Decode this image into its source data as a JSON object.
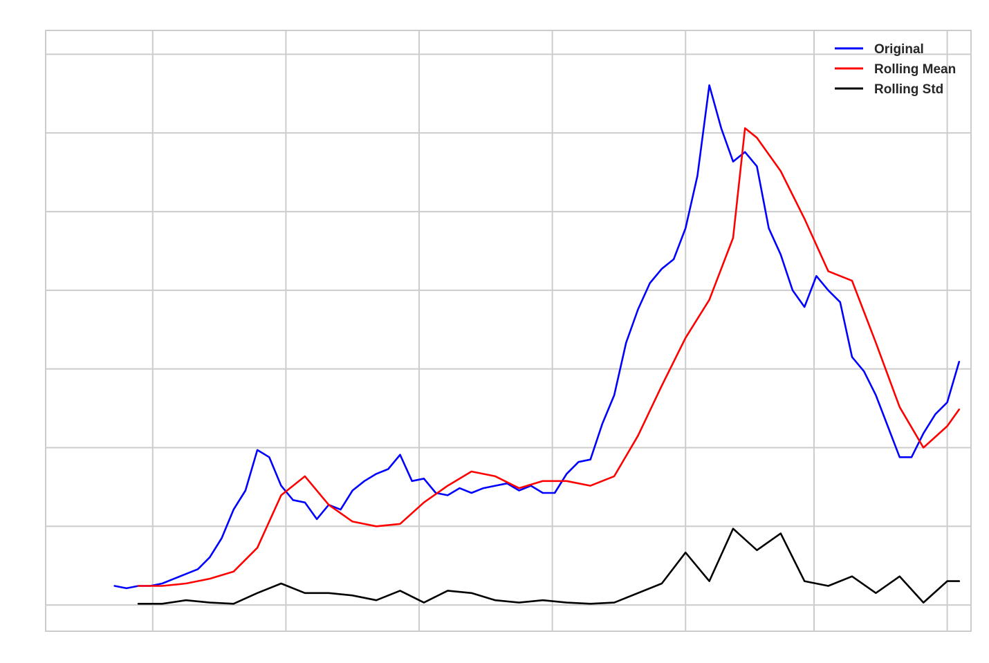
{
  "chart_data": {
    "type": "line",
    "title": "",
    "xlabel": "",
    "ylabel": "",
    "x_tick_labels_visible": false,
    "y_tick_labels_visible": false,
    "grid": true,
    "legend_position": "top-right",
    "x_range": [
      -29,
      360
    ],
    "y_range": [
      -11,
      241
    ],
    "series": [
      {
        "name": "Original",
        "color": "#0000ff",
        "x": [
          0,
          5,
          10,
          15,
          20,
          25,
          30,
          35,
          40,
          45,
          50,
          55,
          60,
          65,
          70,
          75,
          80,
          85,
          90,
          95,
          100,
          105,
          110,
          115,
          120,
          125,
          130,
          135,
          140,
          145,
          150,
          155,
          160,
          165,
          170,
          175,
          180,
          185,
          190,
          195,
          200,
          205,
          210,
          215,
          220,
          225,
          230,
          235,
          240,
          245,
          250,
          255,
          260,
          265,
          270,
          275,
          280,
          285,
          290,
          295,
          300,
          305,
          310,
          315,
          320,
          325,
          330,
          335,
          340,
          345,
          350,
          355
        ],
        "values": [
          8,
          7,
          8,
          8,
          9,
          11,
          13,
          15,
          20,
          28,
          40,
          48,
          65,
          62,
          50,
          44,
          43,
          36,
          42,
          40,
          48,
          52,
          55,
          57,
          63,
          52,
          53,
          47,
          46,
          49,
          47,
          49,
          50,
          51,
          48,
          50,
          47,
          47,
          55,
          60,
          61,
          76,
          88,
          110,
          124,
          135,
          141,
          145,
          158,
          180,
          218,
          200,
          186,
          190,
          184,
          158,
          147,
          132,
          125,
          138,
          132,
          127,
          104,
          98,
          88,
          75,
          62,
          62,
          72,
          80,
          85,
          102
        ]
      },
      {
        "name": "Rolling Mean",
        "color": "#ff0000",
        "x": [
          10,
          20,
          30,
          40,
          50,
          60,
          70,
          80,
          90,
          100,
          110,
          120,
          130,
          140,
          150,
          160,
          170,
          180,
          190,
          200,
          210,
          220,
          230,
          240,
          250,
          260,
          265,
          270,
          280,
          290,
          300,
          310,
          320,
          330,
          340,
          350,
          355
        ],
        "values": [
          8,
          8,
          9,
          11,
          14,
          24,
          46,
          54,
          42,
          35,
          33,
          34,
          43,
          50,
          56,
          54,
          49,
          52,
          52,
          50,
          54,
          71,
          92,
          112,
          128,
          154,
          200,
          196,
          182,
          162,
          140,
          136,
          110,
          83,
          66,
          75,
          82
        ]
      },
      {
        "name": "Rolling Std",
        "color": "#000000",
        "x": [
          10,
          20,
          30,
          40,
          50,
          60,
          70,
          80,
          90,
          100,
          110,
          120,
          130,
          140,
          150,
          160,
          170,
          180,
          190,
          200,
          210,
          230,
          240,
          250,
          260,
          270,
          280,
          290,
          300,
          310,
          320,
          330,
          340,
          350,
          355
        ],
        "values": [
          0.5,
          0.5,
          2,
          1,
          0.5,
          5,
          9,
          5,
          5,
          4,
          2,
          6,
          1,
          6,
          5,
          2,
          1,
          2,
          1,
          0.5,
          1,
          9,
          22,
          10,
          32,
          23,
          30,
          10,
          8,
          12,
          5,
          12,
          1,
          10,
          10
        ]
      }
    ]
  }
}
